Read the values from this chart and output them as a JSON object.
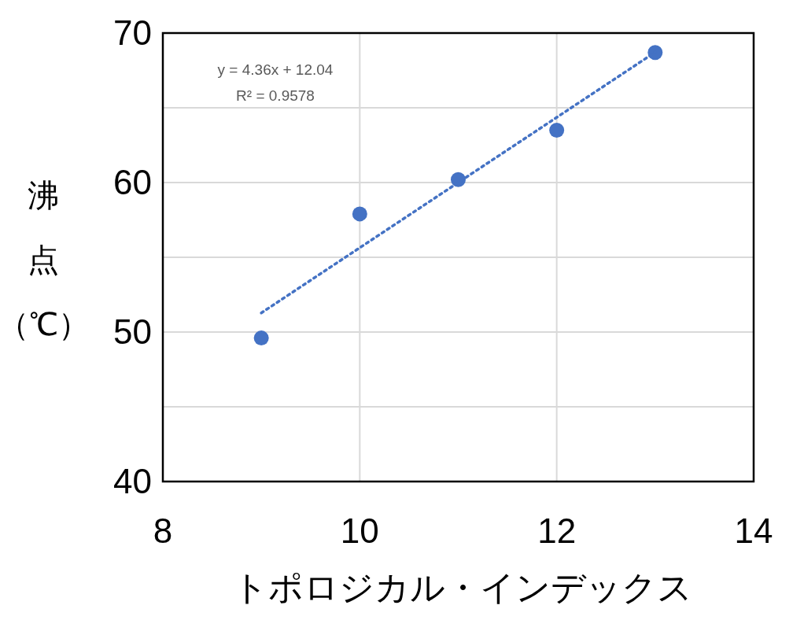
{
  "chart_data": {
    "type": "scatter",
    "xlabel": "トポロジカル・インデックス",
    "ylabel": "沸点（℃）",
    "annotations": [
      "y = 4.36x + 12.04",
      "R² = 0.9578"
    ],
    "grid": true,
    "xlim": [
      8,
      14
    ],
    "ylim": [
      40,
      70
    ],
    "xticks": [
      8,
      10,
      12,
      14
    ],
    "yticks": [
      40,
      {
        "value": 45,
        "label": null
      },
      50,
      {
        "value": 55,
        "label": null
      },
      60,
      {
        "value": 65,
        "label": null
      },
      70
    ],
    "series": [
      {
        "marker": "circle",
        "color": "#4472c4",
        "x": [
          9,
          10,
          11,
          12,
          13
        ],
        "values": [
          49.6,
          57.9,
          60.2,
          63.5,
          68.7
        ]
      },
      {
        "type": "line",
        "marker": "none",
        "color": "#4472c4",
        "line_style": "dotted",
        "x": [
          9,
          13
        ],
        "values": [
          51.28,
          68.72
        ]
      }
    ]
  }
}
